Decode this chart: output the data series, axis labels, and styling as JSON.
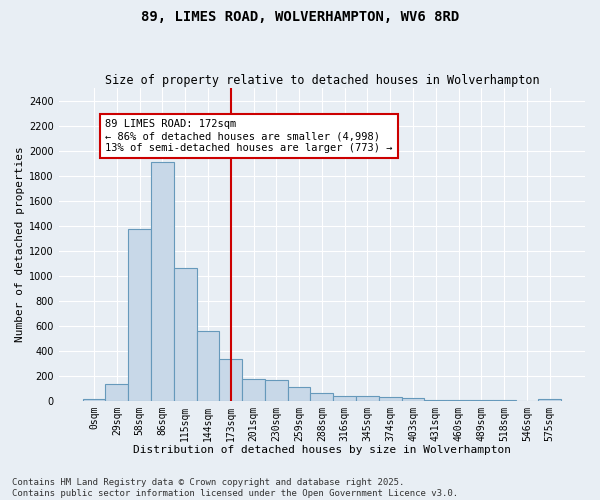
{
  "title1": "89, LIMES ROAD, WOLVERHAMPTON, WV6 8RD",
  "title2": "Size of property relative to detached houses in Wolverhampton",
  "xlabel": "Distribution of detached houses by size in Wolverhampton",
  "ylabel": "Number of detached properties",
  "bin_labels": [
    "0sqm",
    "29sqm",
    "58sqm",
    "86sqm",
    "115sqm",
    "144sqm",
    "173sqm",
    "201sqm",
    "230sqm",
    "259sqm",
    "288sqm",
    "316sqm",
    "345sqm",
    "374sqm",
    "403sqm",
    "431sqm",
    "460sqm",
    "489sqm",
    "518sqm",
    "546sqm",
    "575sqm"
  ],
  "bar_heights": [
    15,
    135,
    1370,
    1910,
    1065,
    560,
    335,
    170,
    165,
    110,
    60,
    38,
    35,
    28,
    20,
    5,
    5,
    5,
    2,
    0,
    15
  ],
  "bar_color": "#c8d8e8",
  "bar_edgecolor": "#6699bb",
  "bar_linewidth": 0.8,
  "vline_x": 6,
  "vline_color": "#cc0000",
  "annotation_text": "89 LIMES ROAD: 172sqm\n← 86% of detached houses are smaller (4,998)\n13% of semi-detached houses are larger (773) →",
  "annotation_box_edgecolor": "#cc0000",
  "annotation_box_facecolor": "#ffffff",
  "ylim": [
    0,
    2500
  ],
  "yticks": [
    0,
    200,
    400,
    600,
    800,
    1000,
    1200,
    1400,
    1600,
    1800,
    2000,
    2200,
    2400
  ],
  "background_color": "#e8eef4",
  "grid_color": "#ffffff",
  "footnote": "Contains HM Land Registry data © Crown copyright and database right 2025.\nContains public sector information licensed under the Open Government Licence v3.0.",
  "title1_fontsize": 10,
  "title2_fontsize": 8.5,
  "xlabel_fontsize": 8,
  "ylabel_fontsize": 8,
  "tick_fontsize": 7,
  "annotation_fontsize": 7.5,
  "footnote_fontsize": 6.5
}
